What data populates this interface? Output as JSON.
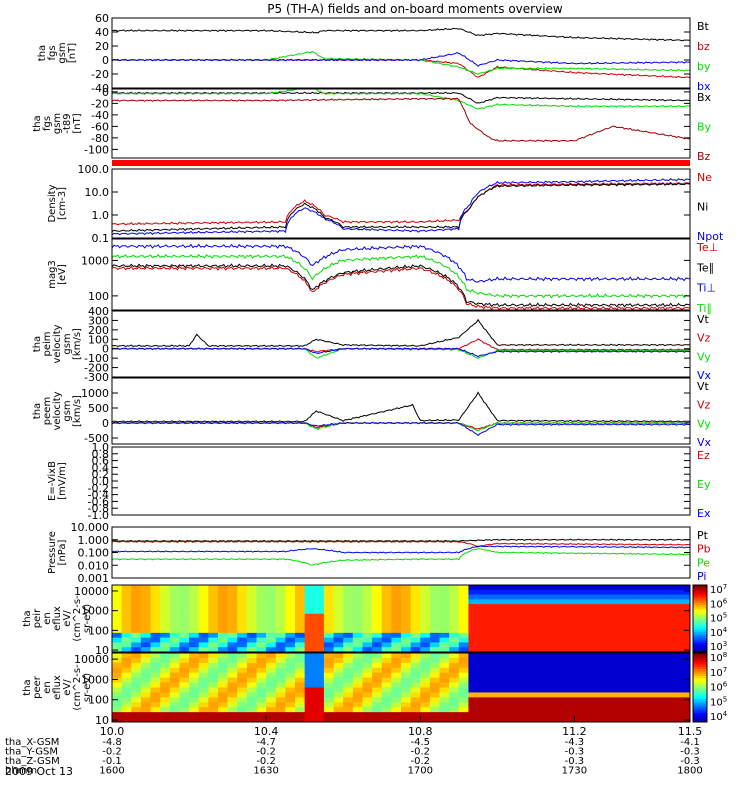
{
  "title": "P5 (TH-A) fields and on-board moments overview",
  "date_label": "2009 Oct 13",
  "chart_data": [
    {
      "type": "line",
      "ylabel_lines": [
        "tha",
        "fgs",
        "gsm",
        "[nT]"
      ],
      "ylim": [
        -40,
        60
      ],
      "yticks": [
        -40,
        -20,
        0,
        20,
        40,
        60
      ],
      "yticklabels": [
        "-40",
        "-20",
        "0",
        "20",
        "40",
        "60"
      ],
      "series": [
        {
          "name": "Bt",
          "color": "#000000",
          "x": [
            10.0,
            10.4,
            10.53,
            10.55,
            10.8,
            10.9,
            10.95,
            11.0,
            11.2,
            11.5
          ],
          "y": [
            42,
            42,
            39,
            42,
            42,
            45,
            35,
            38,
            32,
            28
          ]
        },
        {
          "name": "bz",
          "color": "#cc0000",
          "x": [
            10.0,
            10.4,
            10.8,
            10.9,
            10.95,
            11.0,
            11.2,
            11.5
          ],
          "y": [
            0,
            0,
            0,
            -5,
            -25,
            -10,
            -18,
            -25
          ]
        },
        {
          "name": "by",
          "color": "#00dd00",
          "x": [
            10.0,
            10.4,
            10.52,
            10.55,
            10.8,
            10.9,
            10.95,
            11.0,
            11.2,
            11.5
          ],
          "y": [
            0,
            0,
            12,
            2,
            0,
            -10,
            -20,
            -12,
            -12,
            -15
          ]
        },
        {
          "name": "bx",
          "color": "#0000ee",
          "x": [
            10.0,
            10.4,
            10.8,
            10.9,
            10.95,
            11.0,
            11.2,
            11.5
          ],
          "y": [
            0,
            0,
            0,
            10,
            -8,
            0,
            -5,
            -3
          ]
        }
      ]
    },
    {
      "type": "line",
      "ylabel_lines": [
        "tha",
        "fgs",
        "gsm",
        "-t89",
        "[nT]"
      ],
      "ylim": [
        -115,
        5
      ],
      "yticks": [
        -100,
        -80,
        -60,
        -40,
        -20,
        0
      ],
      "yticklabels": [
        "-100",
        "-80",
        "-60",
        "-40",
        "-20",
        "0"
      ],
      "series": [
        {
          "name": "Bx",
          "color": "#000000",
          "x": [
            10.0,
            10.4,
            10.8,
            10.9,
            10.95,
            11.0,
            11.2,
            11.5
          ],
          "y": [
            -2,
            -2,
            -2,
            -2,
            -20,
            -10,
            -12,
            -15
          ]
        },
        {
          "name": "By",
          "color": "#00dd00",
          "x": [
            10.0,
            10.4,
            10.52,
            10.55,
            10.8,
            10.9,
            10.95,
            11.0,
            11.2,
            11.5
          ],
          "y": [
            -3,
            -3,
            8,
            -3,
            -3,
            -15,
            -30,
            -22,
            -25,
            -25
          ]
        },
        {
          "name": "Bz",
          "color": "#990000",
          "x": [
            10.0,
            10.4,
            10.8,
            10.9,
            10.93,
            10.98,
            11.0,
            11.2,
            11.3,
            11.5
          ],
          "y": [
            -15,
            -15,
            -12,
            -12,
            -55,
            -80,
            -85,
            -85,
            -60,
            -82
          ]
        }
      ]
    },
    {
      "type": "line",
      "ylabel_lines": [
        "Density",
        "[cm-3]"
      ],
      "log": true,
      "ylim": [
        0.1,
        100
      ],
      "yticks": [
        0.1,
        1,
        10,
        100
      ],
      "yticklabels": [
        "0.1",
        "1.0",
        "10.0",
        "100.0"
      ],
      "series": [
        {
          "name": "Ne",
          "color": "#cc0000",
          "x": [
            10.0,
            10.45,
            10.5,
            10.55,
            10.6,
            10.8,
            10.9,
            10.93,
            10.97,
            11.0,
            11.2,
            11.5
          ],
          "y": [
            0.4,
            0.5,
            4,
            1,
            0.5,
            0.5,
            0.6,
            2,
            10,
            20,
            22,
            24
          ]
        },
        {
          "name": "Ni",
          "color": "#000000",
          "x": [
            10.0,
            10.45,
            10.5,
            10.55,
            10.6,
            10.8,
            10.9,
            10.93,
            10.97,
            11.0,
            11.2,
            11.5
          ],
          "y": [
            0.2,
            0.3,
            3,
            0.8,
            0.3,
            0.3,
            0.3,
            2,
            10,
            18,
            20,
            22
          ]
        },
        {
          "name": "Npot",
          "color": "#0000ee",
          "x": [
            10.0,
            10.45,
            10.5,
            10.55,
            10.6,
            10.8,
            10.9,
            10.93,
            10.97,
            11.0,
            11.2,
            11.5
          ],
          "y": [
            0.15,
            0.2,
            2,
            0.7,
            0.25,
            0.2,
            0.25,
            3,
            15,
            25,
            28,
            35
          ]
        }
      ]
    },
    {
      "type": "line",
      "ylabel_lines": [
        "mag3",
        "[eV]"
      ],
      "log": true,
      "ylim": [
        40,
        4000
      ],
      "yticks": [
        100,
        1000
      ],
      "yticklabels": [
        "100",
        "1000"
      ],
      "series": [
        {
          "name": "Te⊥",
          "color": "#cc0000",
          "x": [
            10.0,
            10.45,
            10.52,
            10.6,
            10.8,
            10.92,
            10.95,
            11.0,
            11.5
          ],
          "y": [
            600,
            600,
            120,
            400,
            600,
            60,
            50,
            45,
            45
          ]
        },
        {
          "name": "Te∥",
          "color": "#000000",
          "x": [
            10.0,
            10.45,
            10.52,
            10.6,
            10.8,
            10.92,
            10.95,
            11.0,
            11.5
          ],
          "y": [
            700,
            700,
            140,
            450,
            700,
            70,
            60,
            55,
            55
          ]
        },
        {
          "name": "Ti⊥",
          "color": "#0000ee",
          "x": [
            10.0,
            10.45,
            10.52,
            10.6,
            10.8,
            10.92,
            10.95,
            11.0,
            11.5
          ],
          "y": [
            2500,
            2500,
            700,
            2000,
            2500,
            300,
            250,
            300,
            300
          ]
        },
        {
          "name": "Ti∥",
          "color": "#00dd00",
          "x": [
            10.0,
            10.45,
            10.52,
            10.6,
            10.8,
            10.92,
            10.95,
            11.0,
            11.5
          ],
          "y": [
            1300,
            1300,
            300,
            1000,
            1300,
            150,
            120,
            100,
            100
          ]
        }
      ]
    },
    {
      "type": "line",
      "ylabel_lines": [
        "tha",
        "peim",
        "velocity",
        "gsm",
        "[km/s]"
      ],
      "ylim": [
        -300,
        400
      ],
      "yticks": [
        -300,
        -200,
        -100,
        0,
        100,
        200,
        300,
        400
      ],
      "yticklabels": [
        "-300",
        "-200",
        "-100",
        "0",
        "100",
        "200",
        "300",
        "400"
      ],
      "series": [
        {
          "name": "Vt",
          "color": "#000000",
          "x": [
            10.0,
            10.2,
            10.22,
            10.25,
            10.5,
            10.53,
            10.6,
            10.8,
            10.9,
            10.95,
            11.0,
            11.5
          ],
          "y": [
            30,
            30,
            150,
            30,
            30,
            100,
            40,
            30,
            120,
            300,
            40,
            40
          ]
        },
        {
          "name": "Vz",
          "color": "#cc0000",
          "x": [
            10.0,
            10.5,
            10.53,
            10.6,
            10.9,
            10.95,
            11.0,
            11.5
          ],
          "y": [
            0,
            0,
            -30,
            0,
            0,
            100,
            -10,
            -10
          ]
        },
        {
          "name": "Vy",
          "color": "#00dd00",
          "x": [
            10.0,
            10.5,
            10.53,
            10.6,
            10.9,
            10.95,
            11.0,
            11.5
          ],
          "y": [
            0,
            0,
            -100,
            0,
            -10,
            -100,
            -20,
            -20
          ]
        },
        {
          "name": "Vx",
          "color": "#0000ee",
          "x": [
            10.0,
            10.5,
            10.53,
            10.6,
            10.9,
            10.95,
            11.0,
            11.5
          ],
          "y": [
            0,
            0,
            -50,
            0,
            0,
            -80,
            -30,
            -30
          ]
        }
      ]
    },
    {
      "type": "line",
      "ylabel_lines": [
        "tha",
        "peem",
        "velocity",
        "gsm",
        "[km/s]"
      ],
      "ylim": [
        -700,
        1500
      ],
      "yticks": [
        -500,
        0,
        500,
        1000
      ],
      "yticklabels": [
        "-500",
        "0",
        "500",
        "1000"
      ],
      "series": [
        {
          "name": "Vt",
          "color": "#000000",
          "x": [
            10.0,
            10.5,
            10.53,
            10.6,
            10.78,
            10.8,
            10.9,
            10.95,
            11.0,
            11.5
          ],
          "y": [
            50,
            50,
            400,
            80,
            600,
            80,
            100,
            1000,
            80,
            50
          ]
        },
        {
          "name": "Vz",
          "color": "#cc0000",
          "x": [
            10.0,
            10.5,
            10.53,
            10.6,
            10.9,
            10.95,
            11.0,
            11.5
          ],
          "y": [
            0,
            0,
            -150,
            0,
            0,
            -200,
            0,
            0
          ]
        },
        {
          "name": "Vy",
          "color": "#00dd00",
          "x": [
            10.0,
            10.5,
            10.53,
            10.6,
            10.9,
            10.95,
            11.0,
            11.5
          ],
          "y": [
            0,
            0,
            -200,
            0,
            0,
            -250,
            0,
            0
          ]
        },
        {
          "name": "Vx",
          "color": "#0000ee",
          "x": [
            10.0,
            10.5,
            10.53,
            10.6,
            10.9,
            10.95,
            11.0,
            11.5
          ],
          "y": [
            0,
            0,
            -100,
            0,
            0,
            -400,
            -50,
            -50
          ]
        }
      ]
    },
    {
      "type": "line",
      "ylabel_lines": [
        "E=-VixB",
        "[mV/m]"
      ],
      "ylim": [
        -1.0,
        1.0
      ],
      "yticks": [
        -1.0,
        -0.8,
        -0.6,
        -0.4,
        -0.2,
        0.0,
        0.2,
        0.4,
        0.6,
        0.8,
        1.0
      ],
      "yticklabels": [
        "-1.0",
        "-0.8",
        "-0.6",
        "-0.4",
        "-0.2",
        "0.0",
        "0.2",
        "0.4",
        "0.6",
        "0.8",
        "1.0"
      ],
      "series": [
        {
          "name": "Ez",
          "color": "#cc0000",
          "x": [],
          "y": []
        },
        {
          "name": "Ey",
          "color": "#00dd00",
          "x": [],
          "y": []
        },
        {
          "name": "Ex",
          "color": "#0000ee",
          "x": [],
          "y": []
        }
      ]
    },
    {
      "type": "line",
      "ylabel_lines": [
        "Pressure",
        "[nPa]"
      ],
      "log": true,
      "ylim": [
        0.001,
        10
      ],
      "yticks": [
        0.001,
        0.01,
        0.1,
        1,
        10
      ],
      "yticklabels": [
        "0.001",
        "0.010",
        "0.100",
        "1.000",
        "10.000"
      ],
      "series": [
        {
          "name": "Pt",
          "color": "#000000",
          "x": [
            10.0,
            10.5,
            10.9,
            11.0,
            11.5
          ],
          "y": [
            0.8,
            0.8,
            0.8,
            1.0,
            1.0
          ]
        },
        {
          "name": "Pb",
          "color": "#cc0000",
          "x": [
            10.0,
            10.5,
            10.9,
            10.95,
            11.0,
            11.5
          ],
          "y": [
            0.7,
            0.7,
            0.7,
            0.3,
            0.5,
            0.4
          ]
        },
        {
          "name": "Pe",
          "color": "#00dd00",
          "x": [
            10.0,
            10.45,
            10.52,
            10.6,
            10.8,
            10.9,
            10.95,
            11.0,
            11.5
          ],
          "y": [
            0.03,
            0.03,
            0.01,
            0.025,
            0.03,
            0.03,
            0.2,
            0.1,
            0.07
          ]
        },
        {
          "name": "Pi",
          "color": "#0000ee",
          "x": [
            10.0,
            10.45,
            10.52,
            10.6,
            10.8,
            10.9,
            10.95,
            11.0,
            11.5
          ],
          "y": [
            0.12,
            0.12,
            0.2,
            0.1,
            0.1,
            0.1,
            0.3,
            0.3,
            0.25
          ]
        }
      ]
    },
    {
      "type": "heatmap",
      "ylabel_lines": [
        "tha",
        "peir",
        "en",
        "eflux",
        "eV/",
        "(cm^2-s-",
        "sr-eV)"
      ],
      "log": true,
      "ylim": [
        8,
        20000
      ],
      "yticks": [
        10,
        100,
        1000,
        10000
      ],
      "yticklabels": [
        "10",
        "100",
        "1000",
        "10000"
      ],
      "colorbar_ticks": [
        {
          "base": "10",
          "exp": "7"
        },
        {
          "base": "10",
          "exp": "6"
        },
        {
          "base": "10",
          "exp": "5"
        },
        {
          "base": "10",
          "exp": "4"
        },
        {
          "base": "10",
          "exp": "3"
        }
      ]
    },
    {
      "type": "heatmap",
      "ylabel_lines": [
        "tha",
        "peer",
        "en",
        "eflux",
        "eV/",
        "(cm^2-s-",
        "sr-eV)"
      ],
      "log": true,
      "ylim": [
        8,
        20000
      ],
      "yticks": [
        10,
        100,
        1000,
        10000
      ],
      "yticklabels": [
        "10",
        "100",
        "1000",
        "10000"
      ],
      "colorbar_ticks": [
        {
          "base": "10",
          "exp": "8"
        },
        {
          "base": "10",
          "exp": "7"
        },
        {
          "base": "10",
          "exp": "6"
        },
        {
          "base": "10",
          "exp": "5"
        },
        {
          "base": "10",
          "exp": "4"
        }
      ]
    }
  ],
  "x_axis": {
    "xlim": [
      10.0,
      11.5
    ],
    "ticks": [
      10.0,
      10.4,
      10.8,
      11.2,
      11.5
    ],
    "tick_labels": [
      "10.0",
      "10.4",
      "10.8",
      "11.2",
      "11.5"
    ],
    "rows": [
      {
        "label": "tha_X-GSM",
        "values": [
          "-4.8",
          "-4.7",
          "-4.5",
          "-4.3",
          "-4.1"
        ]
      },
      {
        "label": "tha_Y-GSM",
        "values": [
          "-0.2",
          "-0.2",
          "-0.2",
          "-0.3",
          "-0.3"
        ]
      },
      {
        "label": "tha_Z-GSM",
        "values": [
          "-0.1",
          "-0.2",
          "-0.2",
          "-0.3",
          "-0.3"
        ]
      },
      {
        "label": "hhmm",
        "values": [
          "1600",
          "1630",
          "1700",
          "1730",
          "1800"
        ]
      }
    ]
  }
}
